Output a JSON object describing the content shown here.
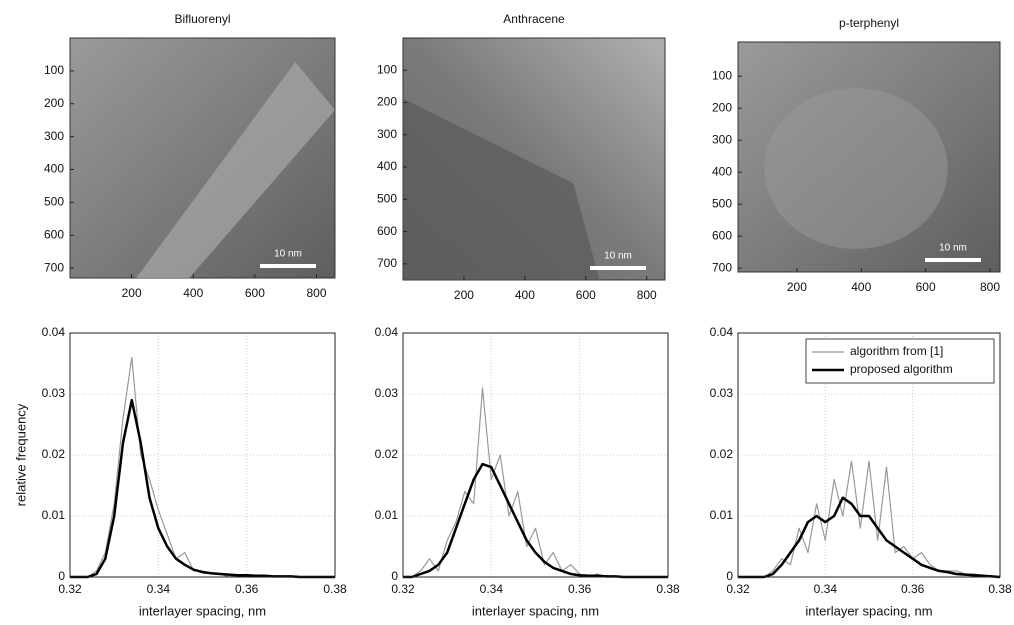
{
  "chart_data": [
    {
      "type": "image",
      "title": "Bifluorenyl",
      "scale_bar": "10 nm",
      "xlim": [
        0,
        860
      ],
      "ylim": [
        0,
        730
      ],
      "y_reversed": true,
      "xticks": [
        200,
        400,
        600,
        800
      ],
      "yticks": [
        100,
        200,
        300,
        400,
        500,
        600,
        700
      ]
    },
    {
      "type": "image",
      "title": "Anthracene",
      "scale_bar": "10 nm",
      "xlim": [
        0,
        860
      ],
      "ylim": [
        0,
        750
      ],
      "y_reversed": true,
      "xticks": [
        200,
        400,
        600,
        800
      ],
      "yticks": [
        100,
        200,
        300,
        400,
        500,
        600,
        700
      ]
    },
    {
      "type": "image",
      "title": "p-terphenyl",
      "scale_bar": "10 nm",
      "xlim": [
        17,
        831
      ],
      "ylim": [
        -7,
        712
      ],
      "y_reversed": true,
      "xticks": [
        200,
        400,
        600,
        800
      ],
      "yticks": [
        100,
        200,
        300,
        400,
        500,
        600,
        700
      ]
    },
    {
      "type": "line",
      "ylabel": "relative frequency",
      "xlabel": "interlayer spacing, nm",
      "grid": true,
      "xlim": [
        0.32,
        0.38
      ],
      "ylim": [
        0,
        0.04
      ],
      "xticks": [
        0.32,
        0.34,
        0.36,
        0.38
      ],
      "yticks": [
        0,
        0.01,
        0.02,
        0.03,
        0.04
      ],
      "x": [
        0.32,
        0.322,
        0.324,
        0.326,
        0.328,
        0.33,
        0.332,
        0.334,
        0.336,
        0.338,
        0.34,
        0.342,
        0.344,
        0.346,
        0.348,
        0.35,
        0.352,
        0.354,
        0.356,
        0.358,
        0.36,
        0.362,
        0.364,
        0.366,
        0.368,
        0.37,
        0.372,
        0.374,
        0.376,
        0.378,
        0.38
      ],
      "series": [
        {
          "color": "#999999",
          "line_width": 1.2,
          "values": [
            0,
            0,
            0,
            0.001,
            0.004,
            0.012,
            0.026,
            0.036,
            0.02,
            0.016,
            0.011,
            0.007,
            0.003,
            0.004,
            0.001,
            0.001,
            0.0005,
            0.0005,
            0,
            0.0003,
            0,
            0,
            0,
            0,
            0,
            0,
            0,
            0,
            0,
            0,
            0
          ]
        },
        {
          "color": "#000000",
          "line_width": 2.5,
          "values": [
            0,
            0,
            0,
            0.0005,
            0.003,
            0.01,
            0.022,
            0.029,
            0.022,
            0.013,
            0.008,
            0.005,
            0.003,
            0.002,
            0.0012,
            0.0008,
            0.0006,
            0.0005,
            0.0004,
            0.0003,
            0.0003,
            0.0002,
            0.0002,
            0.0001,
            0.0001,
            0.0001,
            0,
            0,
            0,
            0,
            0
          ]
        }
      ]
    },
    {
      "type": "line",
      "xlabel": "interlayer spacing, nm",
      "grid": true,
      "xlim": [
        0.32,
        0.38
      ],
      "ylim": [
        0,
        0.04
      ],
      "xticks": [
        0.32,
        0.34,
        0.36,
        0.38
      ],
      "yticks": [
        0,
        0.01,
        0.02,
        0.03,
        0.04
      ],
      "x": [
        0.32,
        0.322,
        0.324,
        0.326,
        0.328,
        0.33,
        0.332,
        0.334,
        0.336,
        0.338,
        0.34,
        0.342,
        0.344,
        0.346,
        0.348,
        0.35,
        0.352,
        0.354,
        0.356,
        0.358,
        0.36,
        0.362,
        0.364,
        0.366,
        0.368,
        0.37,
        0.372,
        0.374,
        0.376,
        0.378,
        0.38
      ],
      "series": [
        {
          "color": "#999999",
          "line_width": 1.2,
          "values": [
            0,
            0,
            0.001,
            0.003,
            0.001,
            0.006,
            0.009,
            0.014,
            0.012,
            0.031,
            0.016,
            0.02,
            0.01,
            0.014,
            0.005,
            0.008,
            0.002,
            0.004,
            0.001,
            0.002,
            0.0005,
            0,
            0.0005,
            0,
            0,
            0,
            0,
            0,
            0,
            0,
            0
          ]
        },
        {
          "color": "#000000",
          "line_width": 2.5,
          "values": [
            0,
            0,
            0.0005,
            0.001,
            0.002,
            0.004,
            0.008,
            0.012,
            0.016,
            0.0185,
            0.018,
            0.015,
            0.012,
            0.009,
            0.006,
            0.004,
            0.0025,
            0.0015,
            0.001,
            0.0005,
            0.0003,
            0.0002,
            0.0002,
            0.0001,
            0.0001,
            0,
            0,
            0,
            0,
            0,
            0
          ]
        }
      ]
    },
    {
      "type": "line",
      "xlabel": "interlayer spacing, nm",
      "grid": true,
      "legend": "upper right",
      "xlim": [
        0.32,
        0.38
      ],
      "ylim": [
        0,
        0.04
      ],
      "xticks": [
        0.32,
        0.34,
        0.36,
        0.38
      ],
      "yticks": [
        0,
        0.01,
        0.02,
        0.03,
        0.04
      ],
      "x": [
        0.32,
        0.322,
        0.324,
        0.326,
        0.328,
        0.33,
        0.332,
        0.334,
        0.336,
        0.338,
        0.34,
        0.342,
        0.344,
        0.346,
        0.348,
        0.35,
        0.352,
        0.354,
        0.356,
        0.358,
        0.36,
        0.362,
        0.364,
        0.366,
        0.368,
        0.37,
        0.372,
        0.374,
        0.376,
        0.378,
        0.38
      ],
      "series": [
        {
          "name": "algorithm from [1]",
          "color": "#999999",
          "line_width": 1.2,
          "values": [
            0,
            0,
            0,
            0,
            0.001,
            0.003,
            0.002,
            0.008,
            0.004,
            0.012,
            0.006,
            0.016,
            0.01,
            0.019,
            0.008,
            0.019,
            0.006,
            0.018,
            0.004,
            0.005,
            0.003,
            0.004,
            0.002,
            0.001,
            0.001,
            0.001,
            0.0005,
            0.0005,
            0.0003,
            0,
            0
          ]
        },
        {
          "name": "proposed algorithm",
          "color": "#000000",
          "line_width": 2.5,
          "values": [
            0,
            0,
            0,
            0,
            0.0005,
            0.002,
            0.004,
            0.006,
            0.009,
            0.01,
            0.009,
            0.01,
            0.013,
            0.012,
            0.01,
            0.01,
            0.008,
            0.006,
            0.005,
            0.004,
            0.003,
            0.002,
            0.0015,
            0.001,
            0.0008,
            0.0005,
            0.0004,
            0.0003,
            0.0002,
            0.0001,
            0
          ]
        }
      ]
    }
  ]
}
